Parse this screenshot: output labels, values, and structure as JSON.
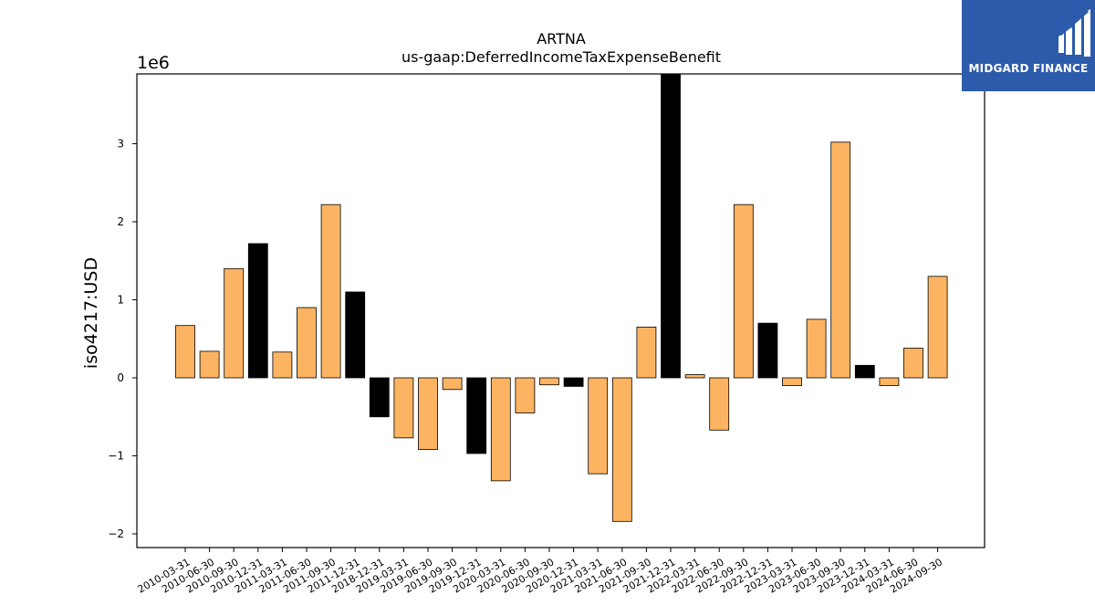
{
  "chart_data": {
    "type": "bar",
    "title": "ARTNA",
    "subtitle": "us-gaap:DeferredIncomeTaxExpenseBenefit",
    "ylabel": "iso4217:USD",
    "xlabel": "",
    "y_offset_label": "1e6",
    "y_scale": 1000000,
    "ylim": [
      -2200000,
      3900000
    ],
    "yticks": [
      -2,
      -1,
      0,
      1,
      2,
      3
    ],
    "grid": false,
    "categories": [
      "2010-03-31",
      "2010-06-30",
      "2010-09-30",
      "2010-12-31",
      "2011-03-31",
      "2011-06-30",
      "2011-09-30",
      "2011-12-31",
      "2018-12-31",
      "2019-03-31",
      "2019-06-30",
      "2019-09-30",
      "2019-12-31",
      "2020-03-31",
      "2020-06-30",
      "2020-09-30",
      "2020-12-31",
      "2021-03-31",
      "2021-06-30",
      "2021-09-30",
      "2021-12-31",
      "2022-03-31",
      "2022-06-30",
      "2022-09-30",
      "2022-12-31",
      "2023-03-31",
      "2023-06-30",
      "2023-09-30",
      "2023-12-31",
      "2024-03-31",
      "2024-06-30",
      "2024-09-30"
    ],
    "values": [
      670000,
      340000,
      1400000,
      1720000,
      330000,
      900000,
      2220000,
      1100000,
      -500000,
      -770000,
      -920000,
      -150000,
      -970000,
      -1320000,
      -450000,
      -90000,
      -110000,
      -1230000,
      -1840000,
      650000,
      3900000,
      40000,
      -670000,
      2220000,
      700000,
      -100000,
      750000,
      3020000,
      160000,
      -100000,
      380000,
      1300000
    ],
    "colors": {
      "quarter": "#fdb462",
      "year_end": "#000000",
      "edge": "#000000"
    },
    "highlight": [
      false,
      false,
      false,
      true,
      false,
      false,
      false,
      true,
      true,
      false,
      false,
      false,
      true,
      false,
      false,
      false,
      true,
      false,
      false,
      false,
      true,
      false,
      false,
      false,
      true,
      false,
      false,
      false,
      true,
      false,
      false,
      false
    ]
  },
  "logo": {
    "text": "MIDGARD FINANCE",
    "background": "#2d5bab"
  }
}
